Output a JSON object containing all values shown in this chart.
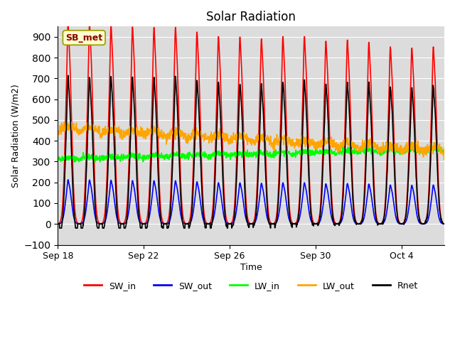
{
  "title": "Solar Radiation",
  "xlabel": "Time",
  "ylabel": "Solar Radiation (W/m2)",
  "ylim": [
    -100,
    950
  ],
  "yticks": [
    -100,
    0,
    100,
    200,
    300,
    400,
    500,
    600,
    700,
    800,
    900
  ],
  "station_label": "SB_met",
  "bg_color": "#dcdcdc",
  "fig_color": "#ffffff",
  "legend_items": [
    {
      "label": "SW_in",
      "color": "#ff0000",
      "lw": 1.2
    },
    {
      "label": "SW_out",
      "color": "#0000ff",
      "lw": 1.2
    },
    {
      "label": "LW_in",
      "color": "#00ff00",
      "lw": 1.2
    },
    {
      "label": "LW_out",
      "color": "#ffa500",
      "lw": 1.2
    },
    {
      "label": "Rnet",
      "color": "#000000",
      "lw": 1.2
    }
  ],
  "n_days": 18,
  "pts_per_day": 96,
  "sw_in_peaks": [
    880,
    875,
    870,
    862,
    860,
    860,
    840,
    820,
    818,
    810,
    820,
    820,
    800,
    805,
    795,
    775,
    770,
    775
  ],
  "xtick_day_offsets": [
    0,
    4,
    8,
    12,
    16
  ],
  "xtick_labels": [
    "Sep 18",
    "Sep 22",
    "Sep 26",
    "Sep 30",
    "Oct 4"
  ]
}
